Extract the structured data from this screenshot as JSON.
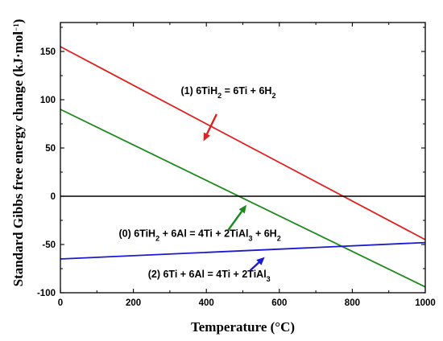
{
  "chart_data": {
    "type": "line",
    "xlabel": "Temperature (°C)",
    "ylabel": {
      "main": "Standard Gibbs free energy change (kJ·mol",
      "sup": "−1",
      "end": ")"
    },
    "xlim": [
      0,
      1000
    ],
    "ylim": [
      -100,
      180
    ],
    "xticks": [
      "0",
      "200",
      "400",
      "600",
      "800",
      "1000"
    ],
    "yticks": [
      "-100",
      "-50",
      "0",
      "50",
      "100",
      "150"
    ],
    "series": [
      {
        "id": "r1",
        "color": "#e02020",
        "x": [
          0,
          1000
        ],
        "y": [
          155,
          -45
        ]
      },
      {
        "id": "r0",
        "color": "#1e8a1e",
        "x": [
          0,
          1000
        ],
        "y": [
          90,
          -94
        ]
      },
      {
        "id": "r2",
        "color": "#1a1ad0",
        "x": [
          0,
          1000
        ],
        "y": [
          -65,
          -48
        ]
      },
      {
        "id": "zero",
        "color": "#000000",
        "x": [
          0,
          1000
        ],
        "y": [
          0,
          0
        ]
      }
    ],
    "annotations": [
      {
        "id": "r1",
        "color": "#e02020",
        "parts": [
          [
            "(1)  6TiH",
            ""
          ],
          [
            "2",
            "sub"
          ],
          [
            " = 6Ti + 6H",
            ""
          ],
          [
            "2",
            "sub"
          ]
        ],
        "at": [
          330,
          106
        ],
        "arrow_from": [
          428,
          85
        ],
        "arrow_to": [
          392,
          57
        ]
      },
      {
        "id": "r0",
        "color": "#1e8a1e",
        "parts": [
          [
            "(0)  6TiH",
            ""
          ],
          [
            "2",
            "sub"
          ],
          [
            " + 6Al = 4Ti + 2TiAl",
            ""
          ],
          [
            "3",
            "sub"
          ],
          [
            " + 6H",
            ""
          ],
          [
            "2",
            "sub"
          ]
        ],
        "at": [
          160,
          -42
        ],
        "arrow_from": [
          460,
          -35
        ],
        "arrow_to": [
          510,
          -9
        ]
      },
      {
        "id": "r2",
        "color": "#1a1ad0",
        "parts": [
          [
            "(2)  6Ti + 6Al = 4Ti + 2TiAl",
            ""
          ],
          [
            "3",
            "sub"
          ]
        ],
        "at": [
          240,
          -84
        ],
        "arrow_from": [
          520,
          -77
        ],
        "arrow_to": [
          560,
          -63
        ]
      }
    ]
  }
}
